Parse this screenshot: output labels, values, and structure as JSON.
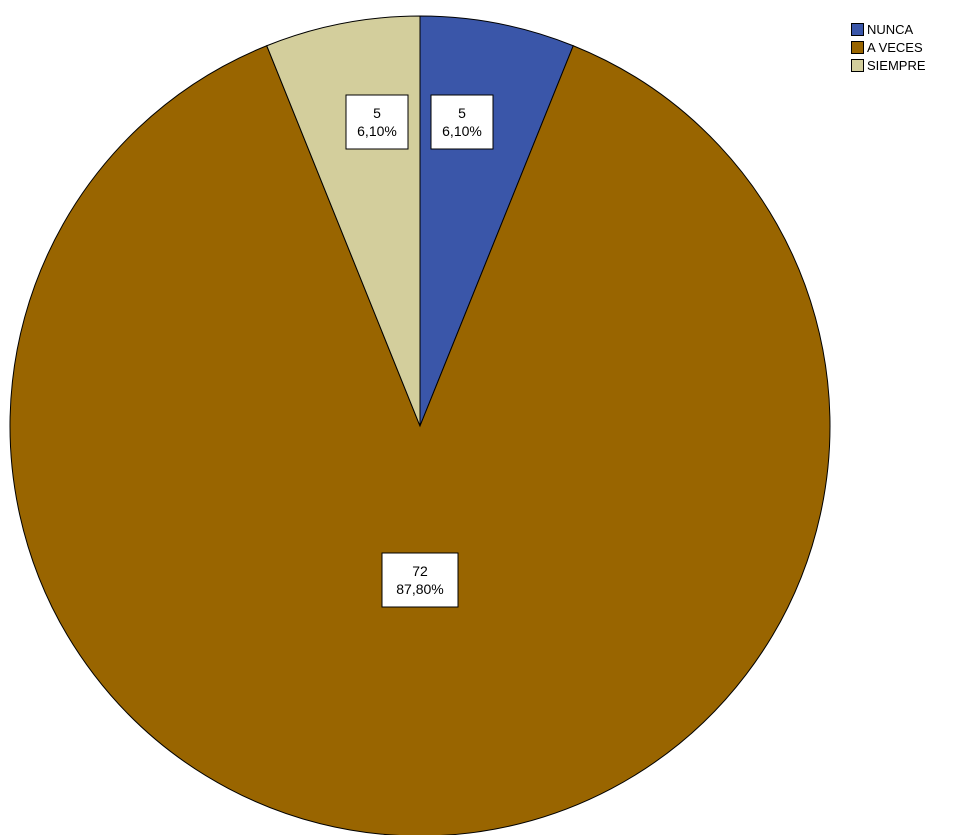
{
  "chart_data": {
    "type": "pie",
    "categories": [
      "NUNCA",
      "A VECES",
      "SIEMPRE"
    ],
    "values": [
      5,
      72,
      5
    ],
    "percent_labels": [
      "6,10%",
      "87,80%",
      "6,10%"
    ],
    "colors": [
      "#3a56a9",
      "#996500",
      "#d3ce9c"
    ],
    "start_angle": "12 o'clock",
    "direction": "clockwise",
    "legend_position": "top-right",
    "title": ""
  }
}
